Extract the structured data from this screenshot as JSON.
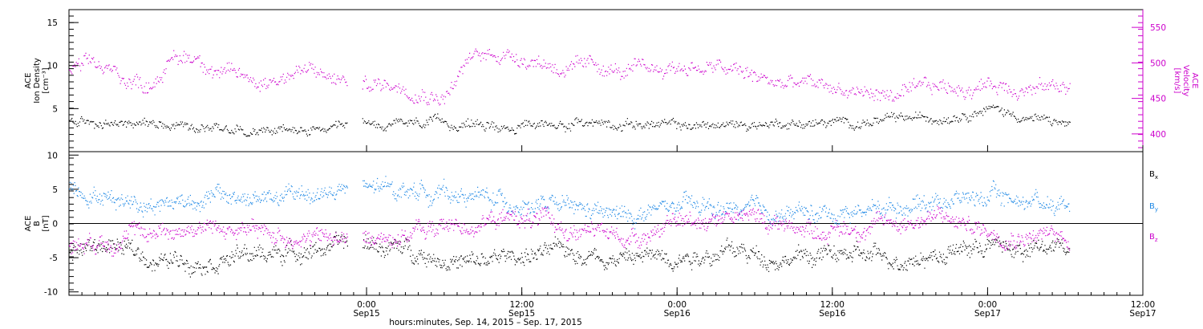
{
  "chart_data": {
    "type": "scatter",
    "x_range": [
      "2015-09-14 01:00",
      "2015-09-17 12:00"
    ],
    "x_axis": {
      "xlabel": "hours:minutes, Sep. 14, 2015 – Sep. 17, 2015",
      "ticks": [
        {
          "time": "2015-09-15 00:00",
          "label": "0:00",
          "date": "Sep15"
        },
        {
          "time": "2015-09-15 12:00",
          "label": "12:00",
          "date": "Sep15"
        },
        {
          "time": "2015-09-16 00:00",
          "label": "0:00",
          "date": "Sep16"
        },
        {
          "time": "2015-09-16 12:00",
          "label": "12:00",
          "date": "Sep16"
        },
        {
          "time": "2015-09-17 00:00",
          "label": "0:00",
          "date": "Sep17"
        },
        {
          "time": "2015-09-17 12:00",
          "label": "12:00",
          "date": "Sep17"
        }
      ]
    },
    "data_gap": [
      "2015-09-14 22:30",
      "2015-09-14 23:40"
    ],
    "data_end": "2015-09-17 06:20",
    "panels": [
      {
        "id": "plasma",
        "ylabel_left": [
          "ACE",
          "Ion Density",
          "[cm⁻³]"
        ],
        "ylabel_right": [
          "ACE",
          "Velocity",
          "[km/s]"
        ],
        "left_axis": {
          "ylim": [
            0,
            16.5
          ],
          "ticks": [
            5,
            10,
            15
          ]
        },
        "right_axis": {
          "ylim": [
            375,
            575
          ],
          "ticks": [
            400,
            450,
            500,
            550
          ],
          "color": "#cc00cc"
        },
        "series": [
          {
            "name": "Ion Density",
            "axis": "left",
            "color": "#000000",
            "x": [
              "2015-09-14 01:00",
              "2015-09-14 04:00",
              "2015-09-14 08:00",
              "2015-09-14 12:00",
              "2015-09-14 16:00",
              "2015-09-14 20:00",
              "2015-09-14 22:00",
              "2015-09-15 00:00",
              "2015-09-15 04:00",
              "2015-09-15 08:00",
              "2015-09-15 12:00",
              "2015-09-15 16:00",
              "2015-09-15 20:00",
              "2015-09-16 00:00",
              "2015-09-16 04:00",
              "2015-09-16 08:00",
              "2015-09-16 12:00",
              "2015-09-16 16:00",
              "2015-09-16 20:00",
              "2015-09-17 00:00",
              "2015-09-17 03:00",
              "2015-09-17 06:00"
            ],
            "values": [
              3.5,
              3.2,
              3.6,
              3.0,
              2.5,
              2.4,
              2.4,
              3.0,
              3.2,
              3.3,
              3.0,
              3.4,
              3.4,
              3.0,
              3.1,
              3.4,
              3.3,
              3.6,
              4.0,
              5.2,
              4.0,
              3.2
            ]
          },
          {
            "name": "Velocity",
            "axis": "right",
            "color": "#cc00cc",
            "x": [
              "2015-09-14 01:00",
              "2015-09-14 03:00",
              "2015-09-14 05:00",
              "2015-09-14 07:00",
              "2015-09-14 09:00",
              "2015-09-14 11:00",
              "2015-09-14 13:00",
              "2015-09-14 16:00",
              "2015-09-14 19:00",
              "2015-09-14 22:00",
              "2015-09-15 00:00",
              "2015-09-15 03:00",
              "2015-09-15 06:00",
              "2015-09-15 08:00",
              "2015-09-15 10:00",
              "2015-09-15 12:00",
              "2015-09-15 14:00",
              "2015-09-15 16:00",
              "2015-09-15 18:00",
              "2015-09-15 20:00",
              "2015-09-15 22:00",
              "2015-09-16 00:00",
              "2015-09-16 02:00",
              "2015-09-16 04:00",
              "2015-09-16 06:00",
              "2015-09-16 08:00",
              "2015-09-16 10:00",
              "2015-09-16 12:00",
              "2015-09-16 14:00",
              "2015-09-16 16:00",
              "2015-09-16 18:00",
              "2015-09-16 20:00",
              "2015-09-16 22:00",
              "2015-09-17 00:00",
              "2015-09-17 02:00",
              "2015-09-17 04:00",
              "2015-09-17 06:00"
            ],
            "values": [
              490,
              495,
              480,
              470,
              505,
              510,
              485,
              475,
              490,
              475,
              470,
              470,
              455,
              505,
              515,
              510,
              500,
              490,
              495,
              485,
              490,
              495,
              495,
              490,
              480,
              470,
              470,
              465,
              460,
              455,
              455,
              465,
              465,
              470,
              470,
              465,
              470
            ]
          }
        ]
      },
      {
        "id": "mag",
        "ylabel_left": [
          "ACE",
          "B",
          "[nT]"
        ],
        "left_axis": {
          "ylim": [
            -10.5,
            10.5
          ],
          "ticks": [
            -10,
            -5,
            0,
            5,
            10
          ]
        },
        "zero_line": true,
        "legend": [
          {
            "label": "B",
            "sub": "x",
            "color": "#000000"
          },
          {
            "label": "B",
            "sub": "y",
            "color": "#1e88e5"
          },
          {
            "label": "B",
            "sub": "z",
            "color": "#cc00cc"
          }
        ],
        "series": [
          {
            "name": "Bx",
            "color": "#000000",
            "x": [
              "2015-09-14 01:00",
              "2015-09-14 04:00",
              "2015-09-14 08:00",
              "2015-09-14 12:00",
              "2015-09-14 16:00",
              "2015-09-14 20:00",
              "2015-09-15 00:00",
              "2015-09-15 04:00",
              "2015-09-15 08:00",
              "2015-09-15 12:00",
              "2015-09-15 16:00",
              "2015-09-15 20:00",
              "2015-09-16 00:00",
              "2015-09-16 04:00",
              "2015-09-16 08:00",
              "2015-09-16 12:00",
              "2015-09-16 16:00",
              "2015-09-16 20:00",
              "2015-09-17 00:00",
              "2015-09-17 03:00",
              "2015-09-17 06:00"
            ],
            "values": [
              -4.0,
              -3.0,
              -5.5,
              -5.0,
              -4.5,
              -3.5,
              -3.0,
              -4.0,
              -6.0,
              -4.5,
              -4.0,
              -5.0,
              -4.5,
              -4.0,
              -5.0,
              -4.5,
              -5.0,
              -4.5,
              -3.0,
              -4.0,
              -3.5
            ]
          },
          {
            "name": "By",
            "color": "#1e88e5",
            "x": [
              "2015-09-14 01:00",
              "2015-09-14 04:00",
              "2015-09-14 08:00",
              "2015-09-14 12:00",
              "2015-09-14 16:00",
              "2015-09-14 20:00",
              "2015-09-15 00:00",
              "2015-09-15 04:00",
              "2015-09-15 08:00",
              "2015-09-15 12:00",
              "2015-09-15 16:00",
              "2015-09-15 20:00",
              "2015-09-16 00:00",
              "2015-09-16 04:00",
              "2015-09-16 08:00",
              "2015-09-16 12:00",
              "2015-09-16 16:00",
              "2015-09-16 20:00",
              "2015-09-17 00:00",
              "2015-09-17 03:00",
              "2015-09-17 06:00"
            ],
            "values": [
              5.5,
              4.0,
              3.0,
              4.0,
              3.5,
              4.5,
              5.0,
              5.0,
              4.0,
              3.0,
              2.0,
              1.0,
              2.5,
              2.0,
              1.5,
              1.5,
              2.5,
              3.5,
              4.0,
              3.5,
              3.0
            ]
          },
          {
            "name": "Bz",
            "color": "#cc00cc",
            "x": [
              "2015-09-14 01:00",
              "2015-09-14 04:00",
              "2015-09-14 08:00",
              "2015-09-14 12:00",
              "2015-09-14 16:00",
              "2015-09-14 20:00",
              "2015-09-15 00:00",
              "2015-09-15 04:00",
              "2015-09-15 08:00",
              "2015-09-15 12:00",
              "2015-09-15 16:00",
              "2015-09-15 20:00",
              "2015-09-16 00:00",
              "2015-09-16 04:00",
              "2015-09-16 08:00",
              "2015-09-16 12:00",
              "2015-09-16 16:00",
              "2015-09-16 20:00",
              "2015-09-17 00:00",
              "2015-09-17 03:00",
              "2015-09-17 06:00"
            ],
            "values": [
              -3.0,
              -2.0,
              -1.0,
              -0.5,
              -1.5,
              -2.0,
              -2.5,
              -1.0,
              0.0,
              1.0,
              -1.0,
              -2.0,
              0.0,
              1.5,
              0.0,
              -1.0,
              0.0,
              1.0,
              -1.0,
              -1.5,
              -2.0
            ]
          }
        ]
      }
    ]
  }
}
